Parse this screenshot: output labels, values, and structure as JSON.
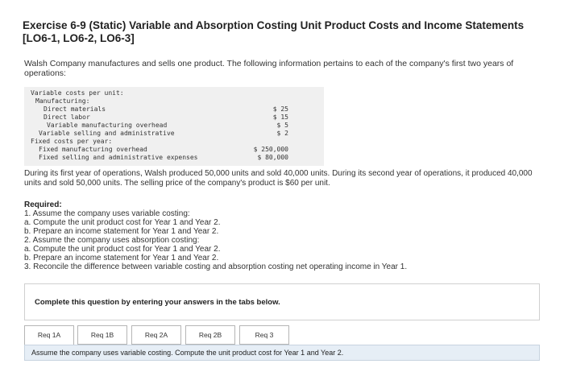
{
  "header": {
    "title": "Exercise 6-9 (Static) Variable and Absorption Costing Unit Product Costs and Income Statements [LO6-1, LO6-2, LO6-3]"
  },
  "intro": "Walsh Company manufactures and sells one product. The following information pertains to each of the company's first two years of operations:",
  "cost_table": {
    "variable_heading": "Variable costs per unit:",
    "manufacturing_heading": "Manufacturing:",
    "direct_materials": {
      "label": "Direct materials",
      "value": "$ 25"
    },
    "direct_labor": {
      "label": "Direct labor",
      "value": "$ 15"
    },
    "variable_mfg_overhead": {
      "label": "Variable manufacturing overhead",
      "value": "$ 5"
    },
    "variable_selling_admin": {
      "label": "Variable selling and administrative",
      "value": "$ 2"
    },
    "fixed_heading": "Fixed costs per year:",
    "fixed_mfg_overhead": {
      "label": "Fixed manufacturing overhead",
      "value": "$ 250,000"
    },
    "fixed_selling_admin": {
      "label": "Fixed selling and administrative expenses",
      "value": "$ 80,000"
    }
  },
  "operations_paragraph": "During its first year of operations, Walsh produced 50,000 units and sold 40,000 units. During its second year of operations, it produced 40,000 units and sold 50,000 units. The selling price of the company's product is $60 per unit.",
  "required": {
    "heading": "Required:",
    "items": [
      "1. Assume the company uses variable costing:",
      "a. Compute the unit product cost for Year 1 and Year 2.",
      "b. Prepare an income statement for Year 1 and Year 2.",
      "2. Assume the company uses absorption costing:",
      "a. Compute the unit product cost for Year 1 and Year 2.",
      "b. Prepare an income statement for Year 1 and Year 2.",
      "3. Reconcile the difference between variable costing and absorption costing net operating income in Year 1."
    ]
  },
  "instruction": "Complete this question by entering your answers in the tabs below.",
  "tabs": [
    {
      "label": "Req 1A"
    },
    {
      "label": "Req 1B"
    },
    {
      "label": "Req 2A"
    },
    {
      "label": "Req 2B"
    },
    {
      "label": "Req 3"
    }
  ],
  "active_tab": "Req 1A",
  "panel_text": "Assume the company uses variable costing. Compute the unit product cost for Year 1 and Year 2."
}
